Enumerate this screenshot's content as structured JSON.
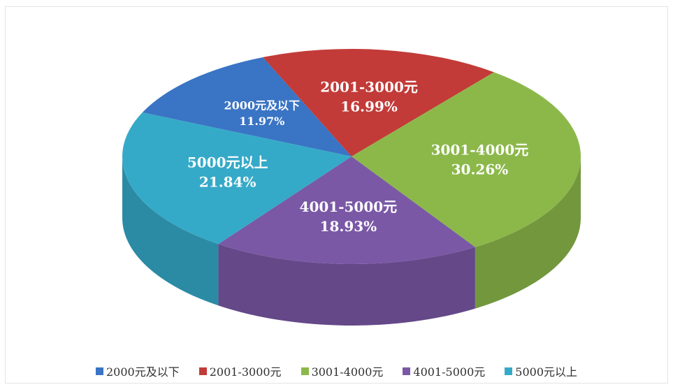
{
  "chart_data": {
    "type": "pie",
    "title": "",
    "unit": "%",
    "slices": [
      {
        "label": "2000元及以下",
        "value": 11.97,
        "value_text": "11.97%",
        "color": "#3a74c4"
      },
      {
        "label": "2001-3000元",
        "value": 16.99,
        "value_text": "16.99%",
        "color": "#c23b38"
      },
      {
        "label": "3001-4000元",
        "value": 30.26,
        "value_text": "30.26%",
        "color": "#8cb84a"
      },
      {
        "label": "4001-5000元",
        "value": 18.93,
        "value_text": "18.93%",
        "color": "#7a58a6"
      },
      {
        "label": "5000元以上",
        "value": 21.84,
        "value_text": "21.84%",
        "color": "#35aac8"
      }
    ],
    "legend_position": "bottom",
    "style": "3d-pie"
  }
}
